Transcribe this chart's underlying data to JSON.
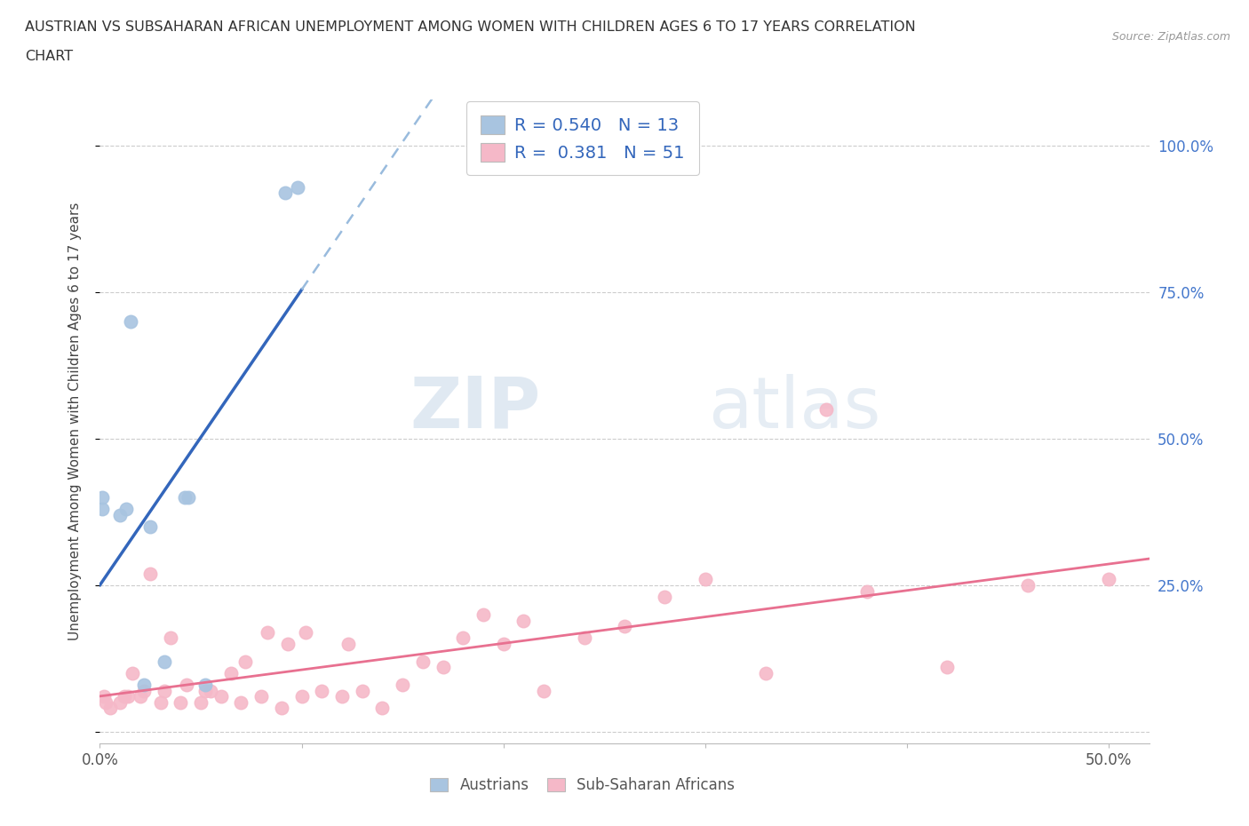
{
  "title_line1": "AUSTRIAN VS SUBSAHARAN AFRICAN UNEMPLOYMENT AMONG WOMEN WITH CHILDREN AGES 6 TO 17 YEARS CORRELATION",
  "title_line2": "CHART",
  "source_text": "Source: ZipAtlas.com",
  "ylabel": "Unemployment Among Women with Children Ages 6 to 17 years",
  "xlim": [
    0.0,
    0.52
  ],
  "ylim": [
    -0.02,
    1.08
  ],
  "xticks": [
    0.0,
    0.1,
    0.2,
    0.3,
    0.4,
    0.5
  ],
  "xticklabels": [
    "0.0%",
    "",
    "",
    "",
    "",
    "50.0%"
  ],
  "yticks": [
    0.0,
    0.25,
    0.5,
    0.75,
    1.0
  ],
  "yticklabels_right": [
    "",
    "25.0%",
    "50.0%",
    "75.0%",
    "100.0%"
  ],
  "watermark_zip": "ZIP",
  "watermark_atlas": "atlas",
  "legend_text1": "R = 0.540   N = 13",
  "legend_text2": "R =  0.381   N = 51",
  "austrians_color": "#a8c4e0",
  "subsaharan_color": "#f5b8c8",
  "trendline_au_color": "#3366bb",
  "trendline_ss_color": "#e87090",
  "trendline_au_dashed_color": "#99bbdd",
  "austrians_x": [
    0.001,
    0.001,
    0.01,
    0.013,
    0.015,
    0.022,
    0.025,
    0.032,
    0.042,
    0.044,
    0.052,
    0.092,
    0.098
  ],
  "austrians_y": [
    0.38,
    0.4,
    0.37,
    0.38,
    0.7,
    0.08,
    0.35,
    0.12,
    0.4,
    0.4,
    0.08,
    0.92,
    0.93
  ],
  "subsaharan_x": [
    0.002,
    0.003,
    0.005,
    0.01,
    0.012,
    0.014,
    0.016,
    0.02,
    0.022,
    0.025,
    0.03,
    0.032,
    0.035,
    0.04,
    0.043,
    0.05,
    0.052,
    0.055,
    0.06,
    0.065,
    0.07,
    0.072,
    0.08,
    0.083,
    0.09,
    0.093,
    0.1,
    0.102,
    0.11,
    0.12,
    0.123,
    0.13,
    0.14,
    0.15,
    0.16,
    0.17,
    0.18,
    0.19,
    0.2,
    0.21,
    0.22,
    0.24,
    0.26,
    0.28,
    0.3,
    0.33,
    0.36,
    0.38,
    0.42,
    0.46,
    0.5
  ],
  "subsaharan_y": [
    0.06,
    0.05,
    0.04,
    0.05,
    0.06,
    0.06,
    0.1,
    0.06,
    0.07,
    0.27,
    0.05,
    0.07,
    0.16,
    0.05,
    0.08,
    0.05,
    0.07,
    0.07,
    0.06,
    0.1,
    0.05,
    0.12,
    0.06,
    0.17,
    0.04,
    0.15,
    0.06,
    0.17,
    0.07,
    0.06,
    0.15,
    0.07,
    0.04,
    0.08,
    0.12,
    0.11,
    0.16,
    0.2,
    0.15,
    0.19,
    0.07,
    0.16,
    0.18,
    0.23,
    0.26,
    0.1,
    0.55,
    0.24,
    0.11,
    0.25,
    0.26
  ],
  "background_color": "#ffffff",
  "grid_color": "#cccccc"
}
